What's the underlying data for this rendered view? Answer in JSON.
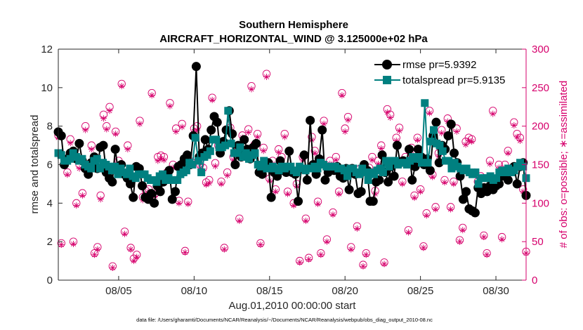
{
  "chart_data": {
    "type": "line",
    "title": "Southern Hemisphere",
    "subtitle": "AIRCRAFT_HORIZONTAL_WIND @ 3.125000e+02 hPa",
    "xlabel": "Aug.01,2010 00:00:00 start",
    "ylabel": "rmse and totalspread",
    "ylabel_right": "# of obs: o=possible; ∗=assimilated",
    "footer": "data file: /Users/gharamti/Documents/NCAR/Reanalysis/~/Documents/NCAR/Reanalysis/webpub/obs_diag_output_2010-08.nc",
    "xlim": [
      1,
      32
    ],
    "ylim": [
      0,
      12
    ],
    "ylim_right": [
      0,
      300
    ],
    "x_ticks": [
      {
        "value": 5,
        "label": "08/05"
      },
      {
        "value": 10,
        "label": "08/10"
      },
      {
        "value": 15,
        "label": "08/15"
      },
      {
        "value": 20,
        "label": "08/20"
      },
      {
        "value": 25,
        "label": "08/25"
      },
      {
        "value": 30,
        "label": "08/30"
      }
    ],
    "y_ticks": [
      "0",
      "2",
      "4",
      "6",
      "8",
      "10",
      "12"
    ],
    "y_ticks_right": [
      "0",
      "50",
      "100",
      "150",
      "200",
      "250",
      "300"
    ],
    "legend": [
      {
        "label": "rmse pr=5.9392",
        "color": "#000000",
        "marker": "circle"
      },
      {
        "label": "totalspread pr=5.9135",
        "color": "#008080",
        "marker": "square"
      }
    ],
    "series": [
      {
        "name": "rmse",
        "color": "#000000",
        "axis": "left",
        "values": [
          7.7,
          7.5,
          6.0,
          6.3,
          6.6,
          6.7,
          6.3,
          7.1,
          6.2,
          5.8,
          5.5,
          6.1,
          6.4,
          5.8,
          6.9,
          7.0,
          5.6,
          5.3,
          5.1,
          6.8,
          5.6,
          6.0,
          5.5,
          5.3,
          5.0,
          4.3,
          5.9,
          5.8,
          4.9,
          4.3,
          4.2,
          4.5,
          4.0,
          4.9,
          4.6,
          5.1,
          5.5,
          5.7,
          4.2,
          4.6,
          5.9,
          6.0,
          6.3,
          6.5,
          6.0,
          7.5,
          11.1,
          6.4,
          6.6,
          7.3,
          6.8,
          7.8,
          8.5,
          8.2,
          6.6,
          7.2,
          7.8,
          8.8,
          7.6,
          6.0,
          7.0,
          6.4,
          7.3,
          6.8,
          6.3,
          6.9,
          7.1,
          5.6,
          5.5,
          5.9,
          6.1,
          4.3,
          5.6,
          5.4,
          6.2,
          5.7,
          5.6,
          6.7,
          5.6,
          5.5,
          4.1,
          5.8,
          6.5,
          5.2,
          8.3,
          6.0,
          5.5,
          6.3,
          7.8,
          5.2,
          5.6,
          5.8,
          5.7,
          5.9,
          5.4,
          5.3,
          5.8,
          4.7,
          5.8,
          5.5,
          4.5,
          4.6,
          6.0,
          5.7,
          4.1,
          4.1,
          5.1,
          5.2,
          6.5,
          5.6,
          5.1,
          5.9,
          5.4,
          7.0,
          6.1,
          6.2,
          6.1,
          6.8,
          5.2,
          5.9,
          6.8,
          6.4,
          6.0,
          6.3,
          5.7,
          7.5,
          8.2,
          6.1,
          7.0,
          6.8,
          7.5,
          8.1,
          6.6,
          6.1,
          5.4,
          4.2,
          4.6,
          3.7,
          3.6,
          3.5,
          4.8,
          4.5,
          4.8,
          4.6,
          4.9,
          4.7,
          4.9,
          5.0,
          5.4,
          5.5,
          5.2,
          5.7,
          5.9,
          5.0,
          5.9,
          6.1,
          4.4
        ]
      },
      {
        "name": "totalspread",
        "color": "#008080",
        "axis": "left",
        "values": [
          6.6,
          6.5,
          6.2,
          6.2,
          6.3,
          6.6,
          6.4,
          6.2,
          6.3,
          6.0,
          5.9,
          5.8,
          6.2,
          6.3,
          5.8,
          6.1,
          6.0,
          5.9,
          5.7,
          5.9,
          5.5,
          5.8,
          5.6,
          5.5,
          5.8,
          5.4,
          5.3,
          5.5,
          5.5,
          5.5,
          5.3,
          5.2,
          5.2,
          5.1,
          5.4,
          5.5,
          5.2,
          5.3,
          5.2,
          5.2,
          5.2,
          5.5,
          5.6,
          5.7,
          6.1,
          6.0,
          7.4,
          6.2,
          5.6,
          6.4,
          6.5,
          6.7,
          7.3,
          7.3,
          6.9,
          6.9,
          7.0,
          8.8,
          7.1,
          6.6,
          6.6,
          6.9,
          6.4,
          6.6,
          6.3,
          6.5,
          6.6,
          6.0,
          5.9,
          6.2,
          5.8,
          5.8,
          5.9,
          5.8,
          5.7,
          5.9,
          5.8,
          5.9,
          5.9,
          5.7,
          5.6,
          5.9,
          5.8,
          5.7,
          5.8,
          5.8,
          5.9,
          5.8,
          6.1,
          6.0,
          5.9,
          5.9,
          5.9,
          5.9,
          5.8,
          5.8,
          5.7,
          5.4,
          5.8,
          5.8,
          5.6,
          5.5,
          5.8,
          5.6,
          5.2,
          5.6,
          5.5,
          5.7,
          5.8,
          5.6,
          6.2,
          5.9,
          6.2,
          6.2,
          6.0,
          6.1,
          6.1,
          6.0,
          6.2,
          6.4,
          6.3,
          6.4,
          6.1,
          9.2,
          6.1,
          7.2,
          7.8,
          7.1,
          7.0,
          6.7,
          6.2,
          6.2,
          5.8,
          6.1,
          5.9,
          5.8,
          5.7,
          5.8,
          5.6,
          5.5,
          5.6,
          5.0,
          5.3,
          5.3,
          5.3,
          5.4,
          5.2,
          5.3,
          5.6,
          5.7,
          5.6,
          5.8,
          5.6,
          5.7,
          5.9,
          6.1,
          5.9,
          5.3
        ]
      },
      {
        "name": "possible",
        "color": "#d6006c",
        "axis": "right",
        "marker": "o",
        "values": [
          188,
          48,
          155,
          140,
          183,
          50,
          100,
          150,
          113,
          200,
          145,
          175,
          35,
          43,
          110,
          215,
          200,
          225,
          18,
          193,
          155,
          255,
          63,
          175,
          42,
          28,
          33,
          207,
          108,
          116,
          118,
          243,
          112,
          160,
          162,
          160,
          140,
          230,
          150,
          197,
          103,
          203,
          38,
          102,
          154,
          197,
          200,
          150,
          146,
          127,
          130,
          237,
          152,
          175,
          128,
          42,
          140,
          198,
          160,
          172,
          80,
          188,
          162,
          196,
          252,
          176,
          190,
          48,
          172,
          268,
          132,
          155,
          118,
          170,
          160,
          190,
          115,
          142,
          100,
          125,
          25,
          160,
          80,
          29,
          186,
          168,
          102,
          35,
          207,
          53,
          155,
          88,
          160,
          115,
          243,
          197,
          212,
          43,
          140,
          70,
          145,
          20,
          35,
          146,
          160,
          116,
          155,
          175,
          23,
          222,
          215,
          150,
          185,
          198,
          128,
          160,
          65,
          172,
          110,
          185,
          118,
          44,
          87,
          220,
          137,
          95,
          165,
          195,
          130,
          210,
          95,
          128,
          197,
          52,
          68,
          180,
          185,
          183,
          140,
          128,
          135,
          58,
          35,
          155,
          220,
          130,
          150,
          56,
          150,
          168,
          142,
          205,
          190,
          185,
          118,
          37
        ]
      },
      {
        "name": "assimilated",
        "color": "#d6006c",
        "axis": "right",
        "marker": "*",
        "values": [
          185,
          46,
          150,
          137,
          178,
          47,
          97,
          145,
          110,
          195,
          140,
          170,
          33,
          40,
          105,
          210,
          196,
          220,
          16,
          190,
          150,
          252,
          60,
          170,
          40,
          25,
          30,
          203,
          104,
          112,
          115,
          240,
          109,
          155,
          158,
          156,
          137,
          226,
          146,
          193,
          100,
          199,
          36,
          99,
          150,
          193,
          195,
          146,
          142,
          124,
          126,
          234,
          148,
          171,
          125,
          40,
          136,
          195,
          156,
          168,
          77,
          185,
          158,
          192,
          248,
          172,
          186,
          46,
          168,
          264,
          129,
          151,
          115,
          166,
          156,
          186,
          112,
          138,
          97,
          122,
          23,
          156,
          77,
          27,
          182,
          165,
          99,
          33,
          203,
          50,
          151,
          85,
          156,
          112,
          240,
          193,
          208,
          40,
          137,
          67,
          141,
          18,
          33,
          143,
          156,
          112,
          151,
          171,
          21,
          218,
          211,
          146,
          181,
          194,
          125,
          156,
          62,
          168,
          107,
          182,
          115,
          42,
          84,
          217,
          134,
          92,
          161,
          191,
          127,
          206,
          92,
          125,
          193,
          50,
          65,
          176,
          181,
          180,
          137,
          125,
          132,
          56,
          33,
          151,
          216,
          127,
          146,
          53,
          146,
          165,
          139,
          201,
          186,
          181,
          115,
          35
        ]
      }
    ]
  }
}
